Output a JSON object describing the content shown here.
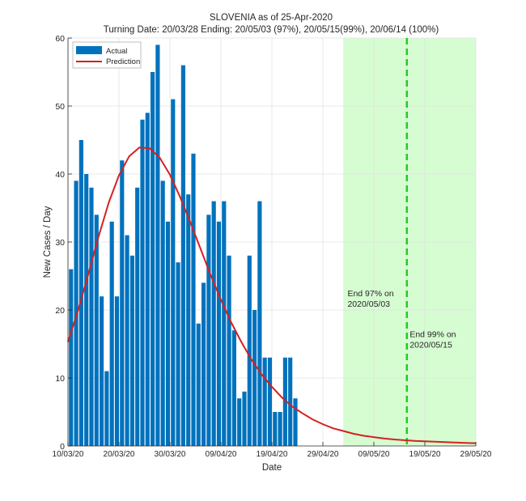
{
  "chart_data": {
    "type": "bar",
    "title": "SLOVENIA as of 25-Apr-2020",
    "subtitle": "Turning Date: 20/03/28  Ending: 20/05/03 (97%), 20/05/15(99%), 20/06/14 (100%)",
    "xlabel": "Date",
    "ylabel": "New Cases / Day",
    "ylim": [
      0,
      60
    ],
    "yticks": [
      0,
      10,
      20,
      30,
      40,
      50,
      60
    ],
    "x_start_date": "2020-03-10",
    "x_range_days": [
      0,
      80
    ],
    "xticks": [
      {
        "day": 0,
        "label": "10/03/20"
      },
      {
        "day": 10,
        "label": "20/03/20"
      },
      {
        "day": 20,
        "label": "30/03/20"
      },
      {
        "day": 30,
        "label": "09/04/20"
      },
      {
        "day": 40,
        "label": "19/04/20"
      },
      {
        "day": 50,
        "label": "29/04/20"
      },
      {
        "day": 60,
        "label": "09/05/20"
      },
      {
        "day": 70,
        "label": "19/05/20"
      },
      {
        "day": 80,
        "label": "29/05/20"
      }
    ],
    "grid": true,
    "legend": {
      "position": "top-left",
      "entries": [
        "Actual",
        "Prediction"
      ]
    },
    "series": [
      {
        "name": "Actual",
        "kind": "bar",
        "color": "#0072bd",
        "start_day": 0,
        "values": [
          26,
          39,
          45,
          40,
          38,
          34,
          22,
          11,
          33,
          22,
          42,
          31,
          28,
          38,
          48,
          49,
          55,
          59,
          39,
          33,
          51,
          27,
          56,
          37,
          43,
          18,
          24,
          34,
          36,
          33,
          36,
          28,
          17,
          7,
          8,
          28,
          20,
          36,
          13,
          13,
          5,
          5,
          13,
          13,
          7
        ]
      },
      {
        "name": "Prediction",
        "kind": "line",
        "color": "#d62020",
        "x_days": [
          0,
          2,
          4,
          6,
          8,
          10,
          12,
          14,
          16,
          18,
          20,
          22,
          24,
          26,
          28,
          30,
          32,
          34,
          36,
          38,
          40,
          42,
          44,
          46,
          48,
          50,
          52,
          54,
          56,
          58,
          60,
          62,
          64,
          66,
          68,
          70,
          72,
          74,
          76,
          78,
          80
        ],
        "values": [
          15.3,
          20.0,
          25.3,
          30.8,
          35.8,
          39.8,
          42.6,
          43.9,
          43.8,
          42.4,
          39.9,
          36.6,
          32.9,
          29.0,
          25.1,
          21.5,
          18.2,
          15.3,
          12.7,
          10.5,
          8.7,
          7.1,
          5.8,
          4.8,
          3.9,
          3.2,
          2.6,
          2.2,
          1.8,
          1.5,
          1.3,
          1.1,
          0.95,
          0.85,
          0.75,
          0.68,
          0.62,
          0.56,
          0.5,
          0.45,
          0.4
        ]
      }
    ],
    "shaded_region": {
      "from_day": 54,
      "to_day": 80,
      "color": "#d6fcd2"
    },
    "vlines": [
      {
        "day": 66,
        "style": "dashed",
        "color": "#22cc22"
      }
    ],
    "annotations": [
      {
        "day": 54.2,
        "y": 22,
        "lines": [
          "End 97% on",
          "2020/05/03"
        ]
      },
      {
        "day": 66.4,
        "y": 16,
        "lines": [
          "End 99% on",
          "2020/05/15"
        ]
      }
    ]
  }
}
